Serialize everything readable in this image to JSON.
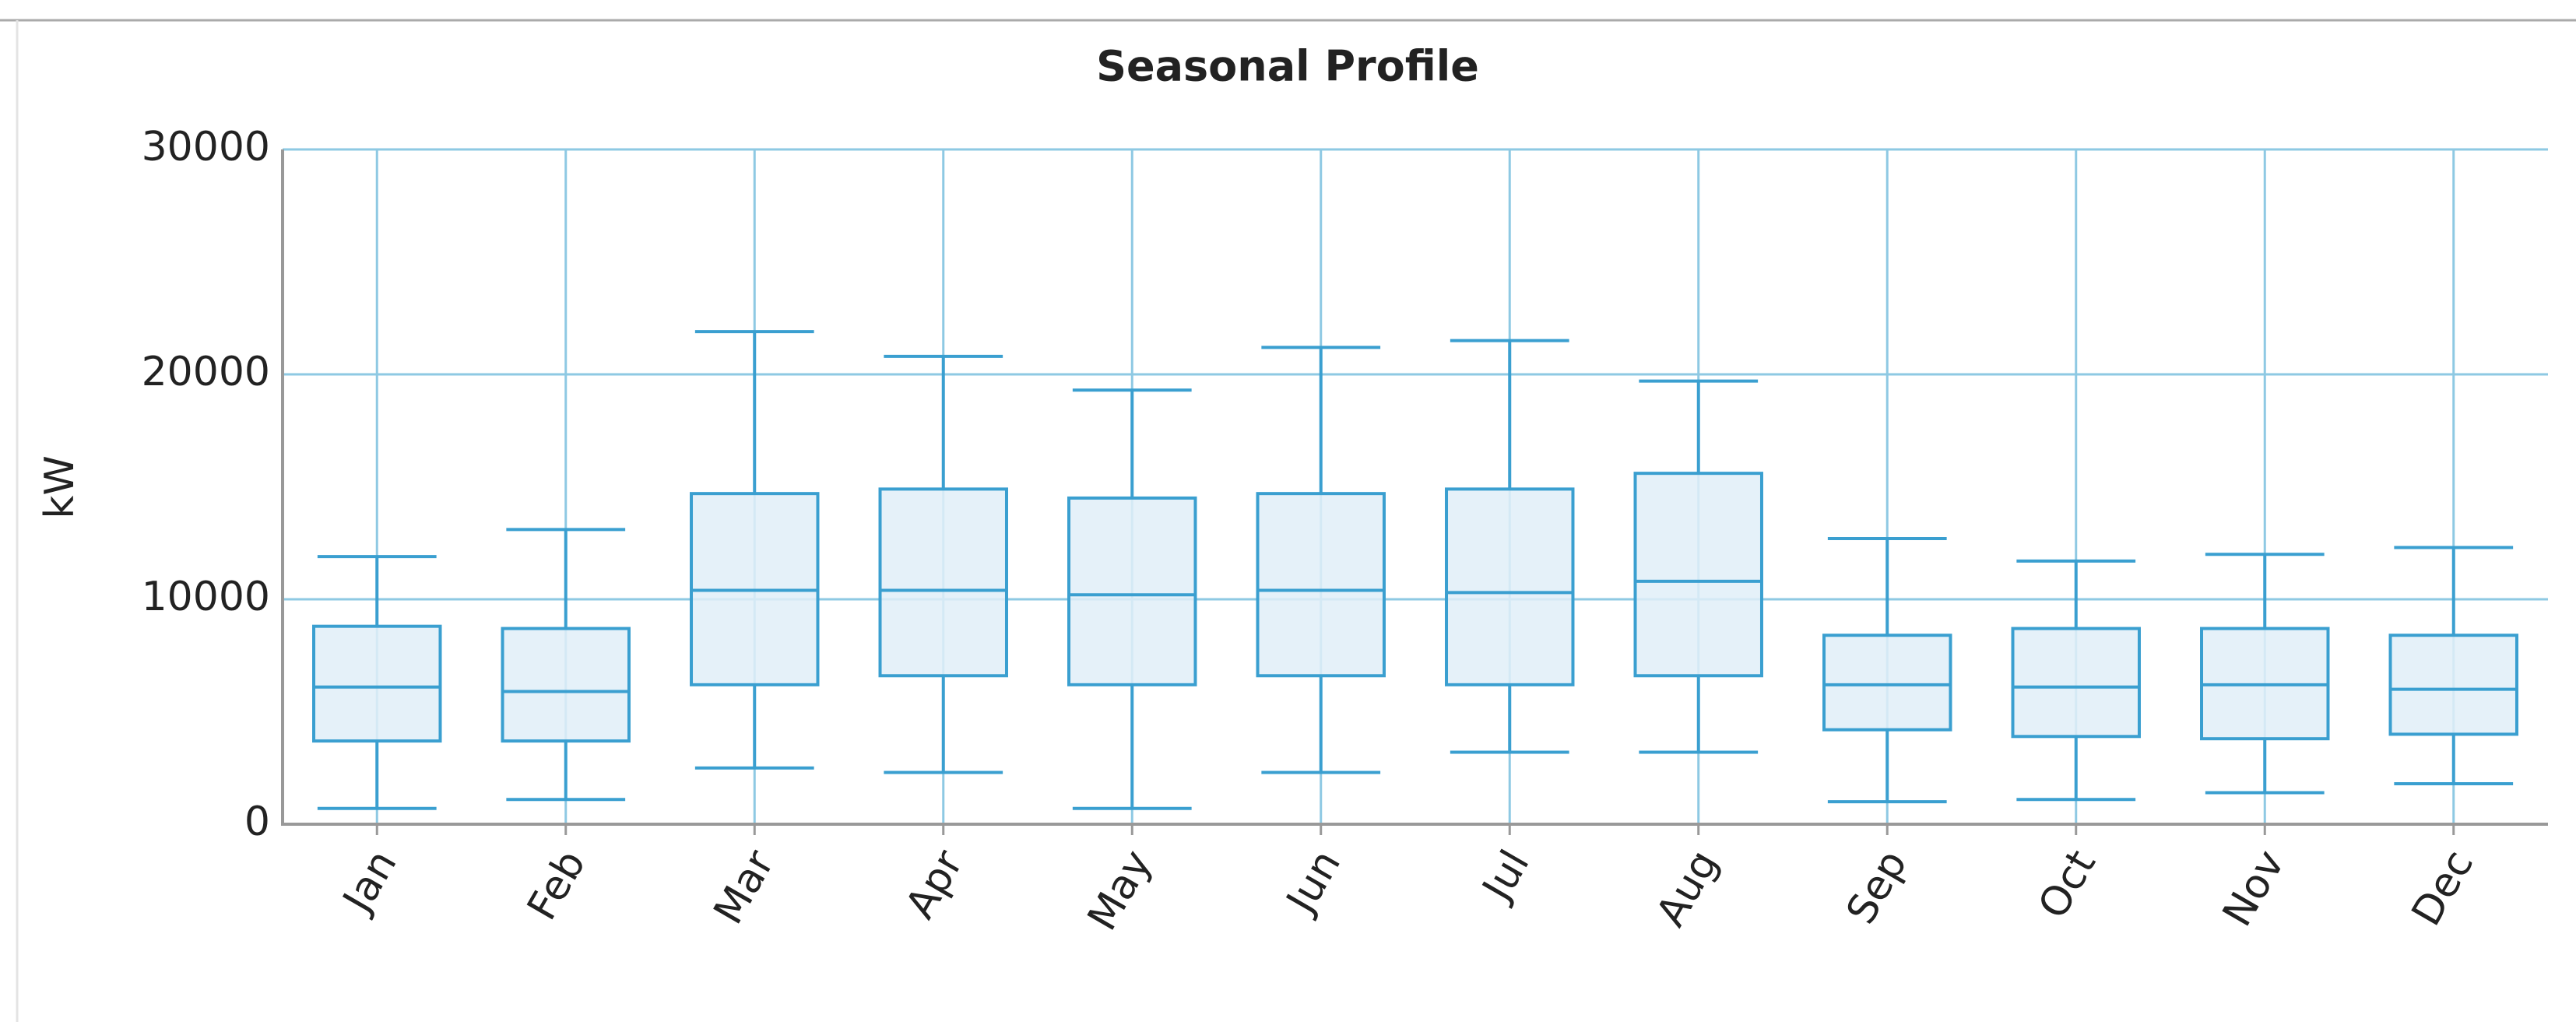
{
  "chart_data": {
    "type": "box",
    "title": "Seasonal Profile",
    "y_label": "kW",
    "categories": [
      "Jan",
      "Feb",
      "Mar",
      "Apr",
      "May",
      "Jun",
      "Jul",
      "Aug",
      "Sep",
      "Oct",
      "Nov",
      "Dec"
    ],
    "min": [
      700,
      1100,
      2500,
      2300,
      700,
      2300,
      3200,
      3200,
      1000,
      1100,
      1400,
      1800
    ],
    "q1": [
      3700,
      3700,
      6200,
      6600,
      6200,
      6600,
      6200,
      6600,
      4200,
      3900,
      3800,
      4000
    ],
    "median": [
      6100,
      5900,
      10400,
      10400,
      10200,
      10400,
      10300,
      10800,
      6200,
      6100,
      6200,
      6000
    ],
    "q3": [
      8800,
      8700,
      14700,
      14900,
      14500,
      14700,
      14900,
      15600,
      8400,
      8700,
      8700,
      8400
    ],
    "max": [
      11900,
      13100,
      21900,
      20800,
      19300,
      21200,
      21500,
      19700,
      12700,
      11700,
      12000,
      12300
    ],
    "color": "#3a9fd0",
    "box_fill": "#e0eff8",
    "grid_color": "#8ec9e3",
    "ylim": [
      0,
      30000
    ],
    "yticks": [
      0,
      10000,
      20000,
      30000
    ],
    "grid": true
  }
}
